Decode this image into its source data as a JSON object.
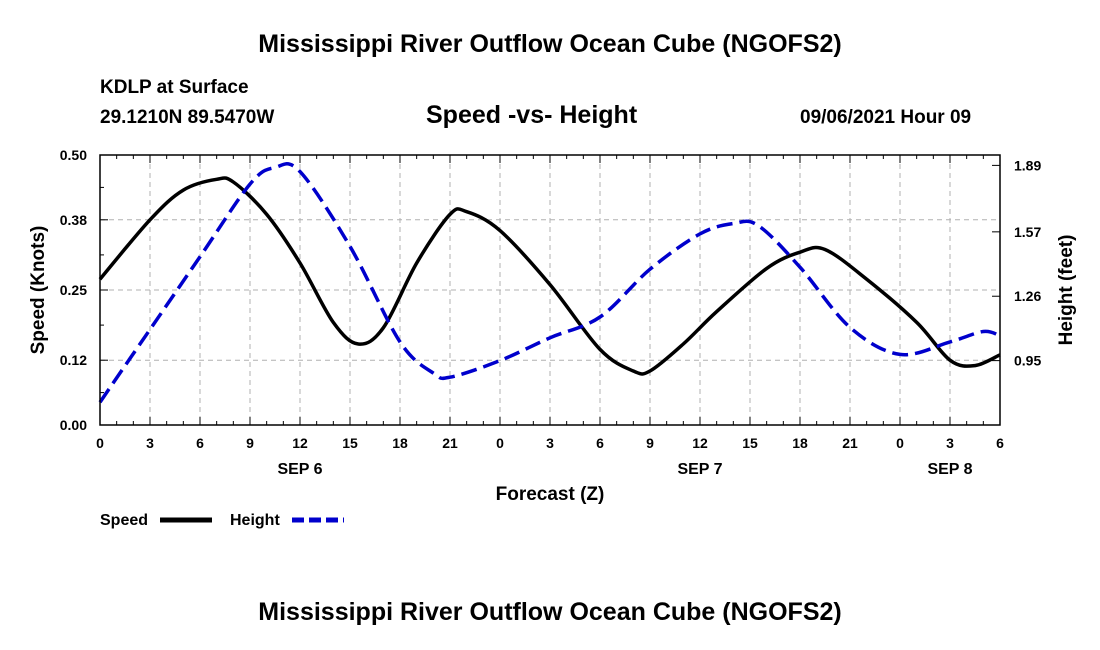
{
  "header": {
    "title": "Mississippi River Outflow Ocean Cube (NGOFS2)",
    "station": "KDLP at Surface",
    "coords": "29.1210N  89.5470W",
    "subtitle": "Speed -vs- Height",
    "datetime": "09/06/2021 Hour 09"
  },
  "footer": {
    "title": "Mississippi River Outflow Ocean Cube (NGOFS2)"
  },
  "chart_data": {
    "type": "line",
    "title": "Speed -vs- Height",
    "xlabel": "Forecast (Z)",
    "ylabel": "Speed (Knots)",
    "y2label": "Height (feet)",
    "xlim": [
      0,
      54
    ],
    "ylim": [
      0,
      0.5
    ],
    "y2lim": [
      0.64,
      1.94
    ],
    "grid": true,
    "x_tick_values": [
      0,
      3,
      6,
      9,
      12,
      15,
      18,
      21,
      24,
      27,
      30,
      33,
      36,
      39,
      42,
      45,
      48,
      51,
      54
    ],
    "x_tick_labels": [
      "0",
      "3",
      "6",
      "9",
      "12",
      "15",
      "18",
      "21",
      "0",
      "3",
      "6",
      "9",
      "12",
      "15",
      "18",
      "21",
      "0",
      "3",
      "6"
    ],
    "day_labels": [
      {
        "x": 12,
        "label": "SEP 6"
      },
      {
        "x": 36,
        "label": "SEP 7"
      },
      {
        "x": 51,
        "label": "SEP 8"
      }
    ],
    "y_ticks": [
      0.0,
      0.12,
      0.25,
      0.38,
      0.5
    ],
    "y_tick_labels": [
      "0.00",
      "0.12",
      "0.25",
      "0.38",
      "0.50"
    ],
    "y2_ticks": [
      0.95,
      1.26,
      1.57,
      1.89
    ],
    "y2_tick_labels": [
      "0.95",
      "1.26",
      "1.57",
      "1.89"
    ],
    "legend": [
      "Speed",
      "Height"
    ],
    "series": [
      {
        "name": "Speed",
        "axis": "left",
        "color": "#000000",
        "style": "solid",
        "x": [
          0,
          3,
          5,
          7,
          8,
          10,
          12,
          14,
          15.5,
          17,
          19,
          21,
          22,
          24,
          27,
          30,
          32,
          33,
          35,
          37,
          40,
          42,
          43.5,
          46,
          49,
          51,
          52.5,
          54
        ],
        "y": [
          0.27,
          0.38,
          0.435,
          0.455,
          0.45,
          0.39,
          0.3,
          0.19,
          0.15,
          0.18,
          0.3,
          0.39,
          0.395,
          0.36,
          0.26,
          0.14,
          0.1,
          0.1,
          0.15,
          0.21,
          0.29,
          0.32,
          0.325,
          0.27,
          0.19,
          0.12,
          0.11,
          0.13
        ]
      },
      {
        "name": "Height",
        "axis": "right",
        "color": "#0000cc",
        "style": "dashed",
        "x": [
          0,
          3,
          6,
          9,
          10.5,
          12,
          15,
          18,
          20,
          21,
          24,
          27,
          30,
          33,
          36,
          38,
          39.5,
          42,
          45,
          48,
          51,
          53,
          54
        ],
        "y": [
          0.75,
          1.1,
          1.45,
          1.8,
          1.88,
          1.86,
          1.5,
          1.04,
          0.89,
          0.87,
          0.95,
          1.06,
          1.16,
          1.39,
          1.56,
          1.61,
          1.6,
          1.4,
          1.11,
          0.98,
          1.04,
          1.09,
          1.07
        ]
      }
    ]
  }
}
